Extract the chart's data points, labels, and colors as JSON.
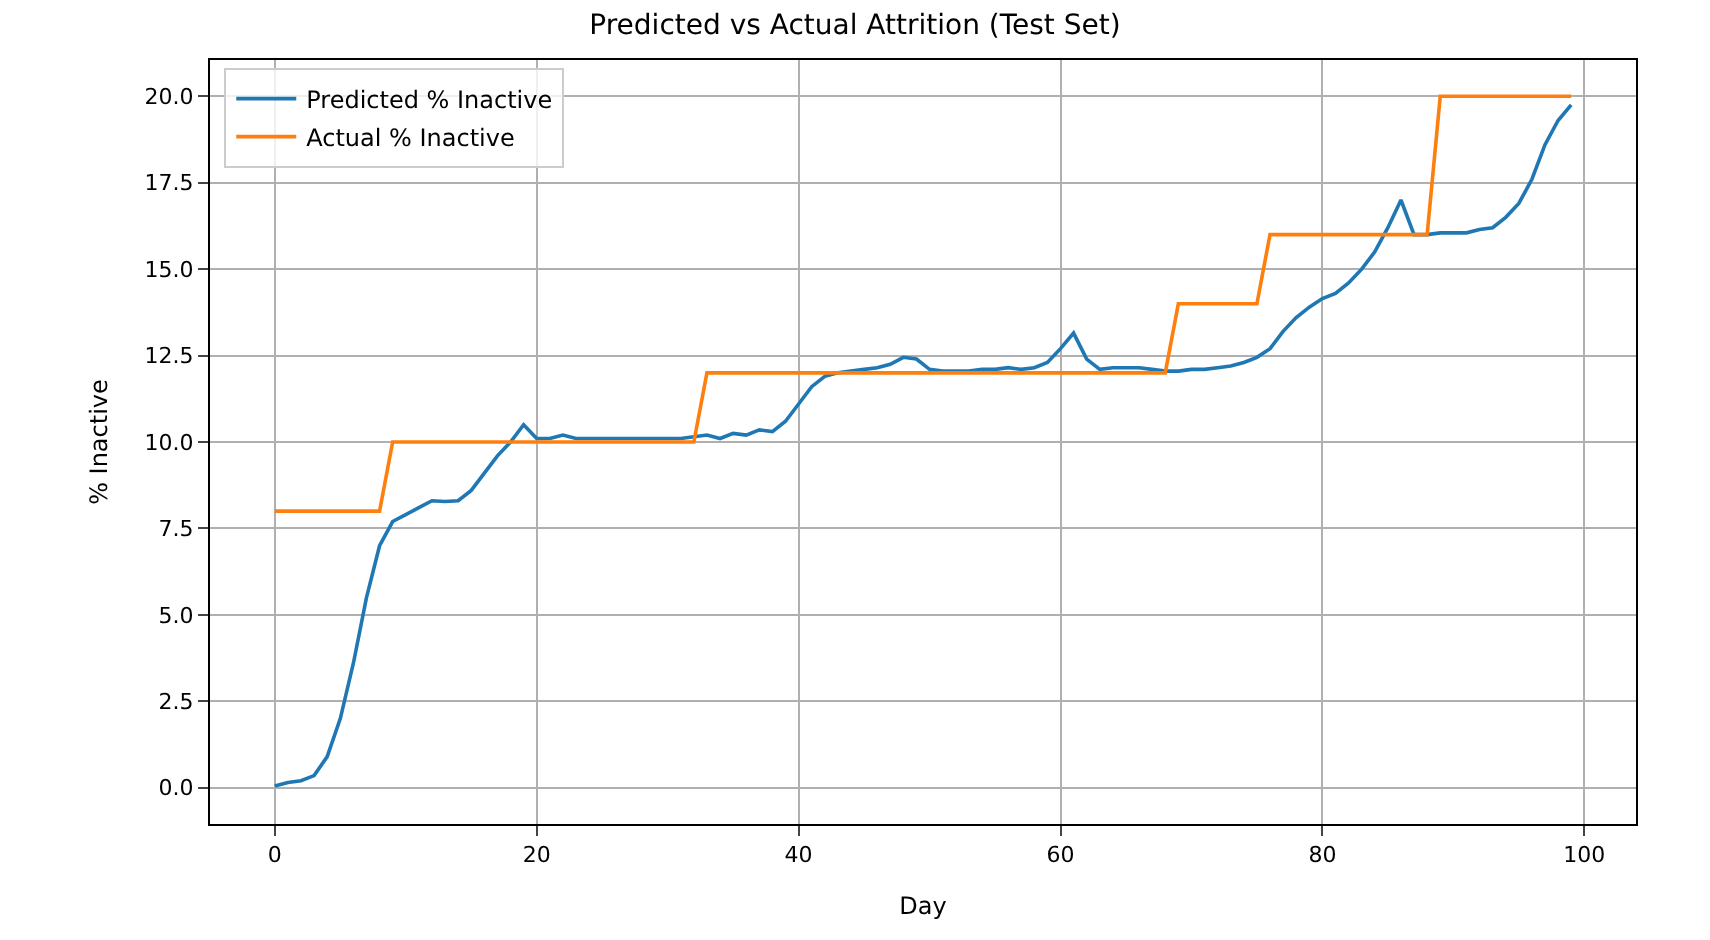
{
  "chart_data": {
    "type": "line",
    "title": "Predicted vs Actual Attrition (Test Set)",
    "xlabel": "Day",
    "ylabel": "% Inactive",
    "x": [
      0,
      1,
      2,
      3,
      4,
      5,
      6,
      7,
      8,
      9,
      10,
      11,
      12,
      13,
      14,
      15,
      16,
      17,
      18,
      19,
      20,
      21,
      22,
      23,
      24,
      25,
      26,
      27,
      28,
      29,
      30,
      31,
      32,
      33,
      34,
      35,
      36,
      37,
      38,
      39,
      40,
      41,
      42,
      43,
      44,
      45,
      46,
      47,
      48,
      49,
      50,
      51,
      52,
      53,
      54,
      55,
      56,
      57,
      58,
      59,
      60,
      61,
      62,
      63,
      64,
      65,
      66,
      67,
      68,
      69,
      70,
      71,
      72,
      73,
      74,
      75,
      76,
      77,
      78,
      79,
      80,
      81,
      82,
      83,
      84,
      85,
      86,
      87,
      88,
      89,
      90,
      91,
      92,
      93,
      94,
      95,
      96,
      97,
      98,
      99
    ],
    "series": [
      {
        "name": "Predicted % Inactive",
        "color": "#1f77b4",
        "values": [
          0.05,
          0.15,
          0.2,
          0.35,
          0.9,
          2.0,
          3.6,
          5.5,
          7.0,
          7.7,
          7.9,
          8.1,
          8.3,
          8.28,
          8.3,
          8.6,
          9.1,
          9.6,
          10.0,
          10.5,
          10.1,
          10.1,
          10.2,
          10.1,
          10.1,
          10.1,
          10.1,
          10.1,
          10.1,
          10.1,
          10.1,
          10.1,
          10.15,
          10.2,
          10.1,
          10.25,
          10.2,
          10.35,
          10.3,
          10.6,
          11.1,
          11.6,
          11.9,
          12.0,
          12.05,
          12.1,
          12.15,
          12.25,
          12.45,
          12.4,
          12.1,
          12.05,
          12.05,
          12.05,
          12.1,
          12.1,
          12.15,
          12.1,
          12.15,
          12.3,
          12.7,
          13.15,
          12.4,
          12.1,
          12.15,
          12.15,
          12.15,
          12.1,
          12.05,
          12.05,
          12.1,
          12.1,
          12.15,
          12.2,
          12.3,
          12.45,
          12.7,
          13.2,
          13.6,
          13.9,
          14.15,
          14.3,
          14.6,
          15.0,
          15.5,
          16.2,
          17.0,
          16.0,
          16.0,
          16.05,
          16.05,
          16.05,
          16.15,
          16.2,
          16.5,
          16.9,
          17.6,
          18.6,
          19.3,
          19.75
        ]
      },
      {
        "name": "Actual % Inactive",
        "color": "#ff7f0e",
        "values": [
          8,
          8,
          8,
          8,
          8,
          8,
          8,
          8,
          8,
          10,
          10,
          10,
          10,
          10,
          10,
          10,
          10,
          10,
          10,
          10,
          10,
          10,
          10,
          10,
          10,
          10,
          10,
          10,
          10,
          10,
          10,
          10,
          10,
          12,
          12,
          12,
          12,
          12,
          12,
          12,
          12,
          12,
          12,
          12,
          12,
          12,
          12,
          12,
          12,
          12,
          12,
          12,
          12,
          12,
          12,
          12,
          12,
          12,
          12,
          12,
          12,
          12,
          12,
          12,
          12,
          12,
          12,
          12,
          12,
          14,
          14,
          14,
          14,
          14,
          14,
          14,
          16,
          16,
          16,
          16,
          16,
          16,
          16,
          16,
          16,
          16,
          16,
          16,
          16,
          20,
          20,
          20,
          20,
          20,
          20,
          20,
          20,
          20,
          20,
          20
        ]
      }
    ],
    "xlim": [
      -4.95,
      103.95
    ],
    "xticks": [
      0,
      20,
      40,
      60,
      80,
      100
    ],
    "ylim": [
      -1.05,
      21.05
    ],
    "yticks": [
      {
        "value": 0,
        "label": "0.0"
      },
      {
        "value": 2.5,
        "label": "2.5"
      },
      {
        "value": 5,
        "label": "5.0"
      },
      {
        "value": 7.5,
        "label": "7.5"
      },
      {
        "value": 10,
        "label": "10.0"
      },
      {
        "value": 12.5,
        "label": "12.5"
      },
      {
        "value": 15,
        "label": "15.0"
      },
      {
        "value": 17.5,
        "label": "17.5"
      },
      {
        "value": 20,
        "label": "20.0"
      }
    ],
    "grid": true,
    "legend": "top left",
    "line_style": "solid"
  }
}
